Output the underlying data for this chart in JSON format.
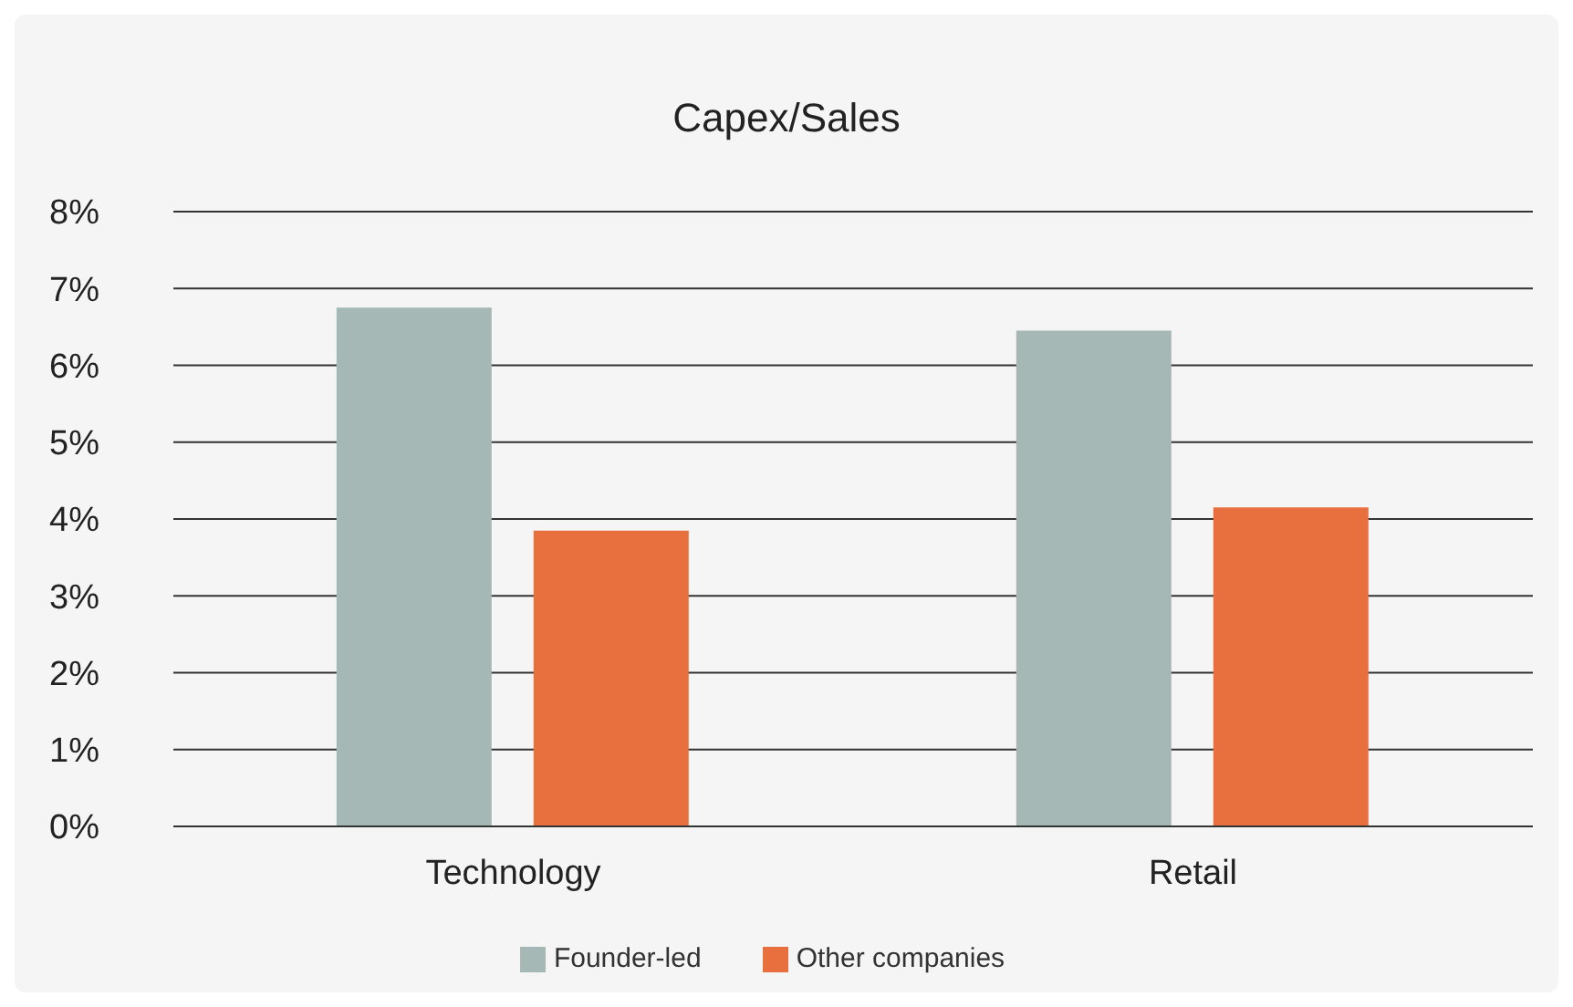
{
  "chart_data": {
    "type": "bar",
    "title": "Capex/Sales",
    "categories": [
      "Technology",
      "Retail"
    ],
    "series": [
      {
        "name": "Founder-led",
        "color": "#a5b8b5",
        "values": [
          6.75,
          6.45
        ]
      },
      {
        "name": "Other companies",
        "color": "#e8703e",
        "values": [
          3.85,
          4.15
        ]
      }
    ],
    "ylim": [
      0,
      8
    ],
    "yticks": [
      {
        "value": 0,
        "label": "0%"
      },
      {
        "value": 1,
        "label": "1%"
      },
      {
        "value": 2,
        "label": "2%"
      },
      {
        "value": 3,
        "label": "3%"
      },
      {
        "value": 4,
        "label": "4%"
      },
      {
        "value": 5,
        "label": "5%"
      },
      {
        "value": 6,
        "label": "6%"
      },
      {
        "value": 7,
        "label": "7%"
      },
      {
        "value": 8,
        "label": "8%"
      }
    ],
    "grid": "y",
    "legend": "bottom"
  }
}
